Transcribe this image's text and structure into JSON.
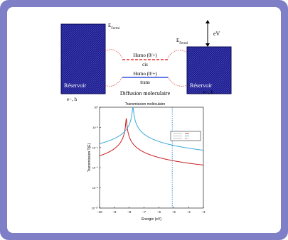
{
  "diagram": {
    "left_reservoir": {
      "label": "Réservoir",
      "sublabel": "e−, h"
    },
    "right_reservoir": {
      "label": "Réservoir",
      "sublabel": "e−, h"
    },
    "fermi_left": {
      "main": "E",
      "sub": "Fermi"
    },
    "fermi_right": {
      "main": "E",
      "sub": "Fermi"
    },
    "bias": "eV",
    "level_cis": {
      "label": "Homo (0/+)",
      "sublabel": "cis",
      "color": "#e03030"
    },
    "level_trans": {
      "label": "Homo (0/+)",
      "sublabel": "trans",
      "color": "#3050e0"
    },
    "caption": "Diffusion moleculaire",
    "reservoir_color": "#1c1c8c"
  },
  "chart_data": {
    "type": "line",
    "title": "Transmission moléculaire",
    "xlabel": "Energie (eV)",
    "ylabel": "Transmission T(E)",
    "xlim": [
      -10,
      -3
    ],
    "y_scale": "log",
    "ylim_exp": [
      -10,
      0
    ],
    "x_ticks": [
      "−10",
      "−9",
      "−8",
      "−7",
      "−6",
      "−5",
      "−4",
      "−3"
    ],
    "y_ticks": [
      "10⁻¹⁰",
      "10⁻⁸",
      "10⁻⁶",
      "10⁻⁴",
      "10⁻²",
      "10⁰"
    ],
    "fermi_line_x": -5.1,
    "series": [
      {
        "color": "#c81e1e",
        "peak_x": -8.2,
        "peak_log": -1.1,
        "gamma": 0.025
      },
      {
        "color": "#3aaad8",
        "peak_x": -7.75,
        "peak_log": 0.0,
        "gamma": 0.035
      }
    ],
    "legend_placement": "top-right"
  }
}
